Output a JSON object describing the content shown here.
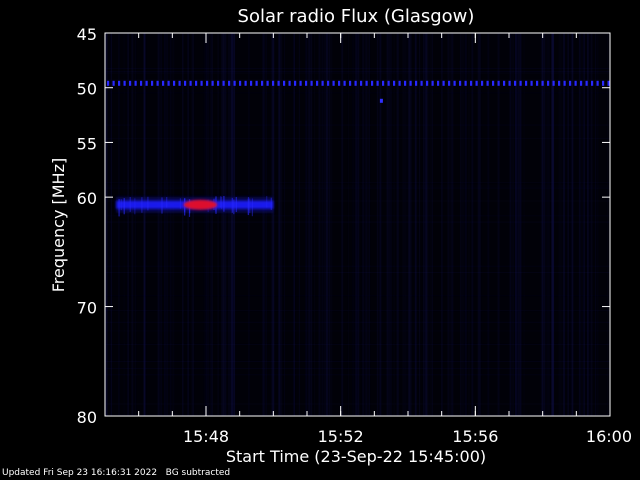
{
  "chart_data": {
    "type": "heatmap",
    "title": "Solar radio Flux (Glasgow)",
    "xlabel": "Start Time (23-Sep-22 15:45:00)",
    "ylabel": "Frequency [MHz]",
    "xlim_minutes_after_start": [
      0,
      15
    ],
    "ylim": [
      45,
      80
    ],
    "y_inverted": true,
    "x_ticks": [
      {
        "label": "15:48",
        "value": "15:48"
      },
      {
        "label": "15:52",
        "value": "15:52"
      },
      {
        "label": "15:56",
        "value": "15:56"
      },
      {
        "label": "16:00",
        "value": "16:00"
      }
    ],
    "y_ticks": [
      45,
      50,
      55,
      60,
      70,
      80
    ],
    "grid": false,
    "colormap": [
      "#000000",
      "#00008b",
      "#0000ff",
      "#ff0000"
    ],
    "features": [
      {
        "time_start": "15:45:20",
        "time_end": "15:50:00",
        "freq": 60.7,
        "intensity": "medium"
      },
      {
        "time_start": "15:47:20",
        "time_end": "15:48:20",
        "freq": 60.7,
        "intensity": "high"
      },
      {
        "time_start": "15:45:00",
        "time_end": "16:00:00",
        "freq": 49.6,
        "intensity": "low-medium",
        "pattern": "periodic dots"
      },
      {
        "time_start": "15:53:10",
        "time_end": "15:53:20",
        "freq": 51.2,
        "intensity": "medium"
      }
    ]
  },
  "footer": {
    "updated": "Updated Fri Sep 23 16:16:31 2022",
    "note": "BG subtracted"
  },
  "colors": {
    "background": "#000000",
    "axes": "#ffffff"
  }
}
